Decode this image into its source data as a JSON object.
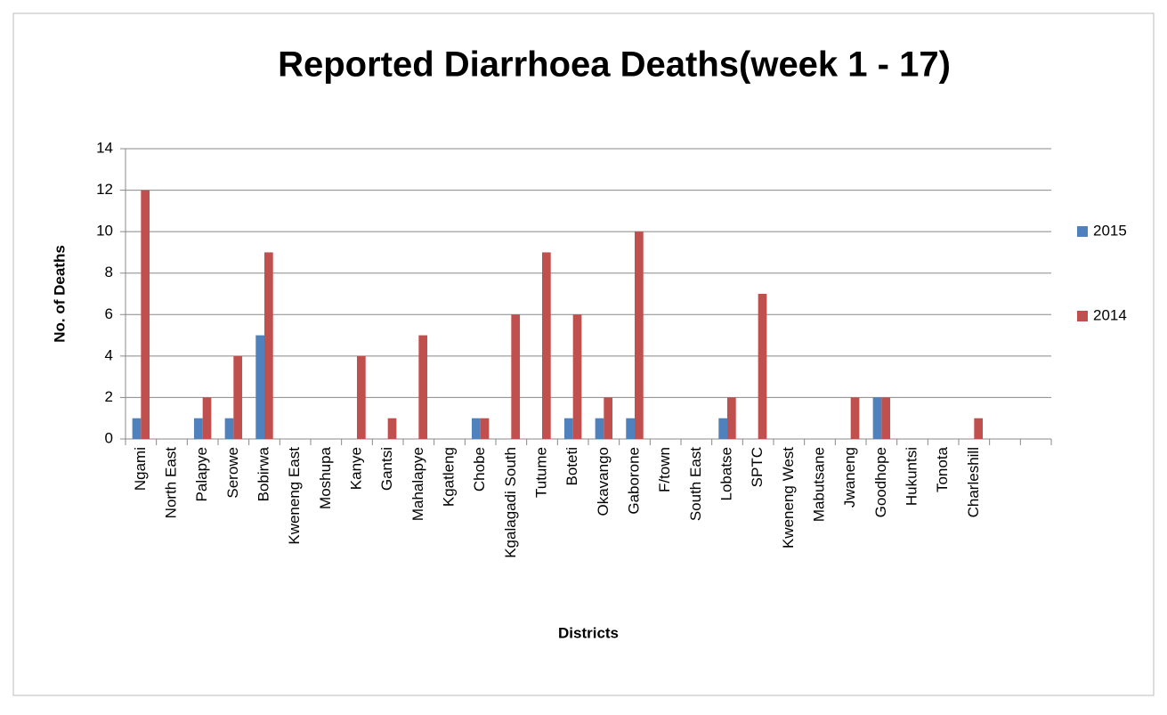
{
  "chart_data": {
    "type": "bar",
    "title": "Reported Diarrhoea Deaths(week 1 - 17)",
    "x_label": "Districts",
    "y_label": "No. of Deaths",
    "categories": [
      "Ngami",
      "North East",
      "Palapye",
      "Serowe",
      "Bobirwa",
      "Kweneng East",
      "Moshupa",
      "Kanye",
      "Gantsi",
      "Mahalapye",
      "Kgatleng",
      "Chobe",
      "Kgalagadi South",
      "Tutume",
      "Boteti",
      "Okavango",
      "Gaborone",
      "F/town",
      "South East",
      "Lobatse",
      "SPTC",
      "Kweneng West",
      "Mabutsane",
      "Jwaneng",
      "Goodhope",
      "Hukuntsi",
      "Tonota",
      "Charleshill",
      null,
      null
    ],
    "series": [
      {
        "name": "2015",
        "color": "#4f81bd",
        "values": [
          1,
          0,
          1,
          1,
          5,
          0,
          0,
          0,
          0,
          0,
          0,
          1,
          0,
          0,
          1,
          1,
          1,
          0,
          0,
          1,
          0,
          0,
          0,
          0,
          2,
          0,
          0,
          0,
          null,
          null
        ]
      },
      {
        "name": "2014",
        "color": "#c0504d",
        "values": [
          12,
          0,
          2,
          4,
          9,
          0,
          0,
          4,
          1,
          5,
          0,
          1,
          6,
          9,
          6,
          2,
          10,
          0,
          0,
          2,
          7,
          0,
          0,
          2,
          2,
          0,
          0,
          1,
          null,
          null
        ]
      }
    ],
    "ylim": [
      0,
      14
    ],
    "yticks": [
      0,
      2,
      4,
      6,
      8,
      10,
      12,
      14
    ],
    "grid": true,
    "legend": "right"
  }
}
